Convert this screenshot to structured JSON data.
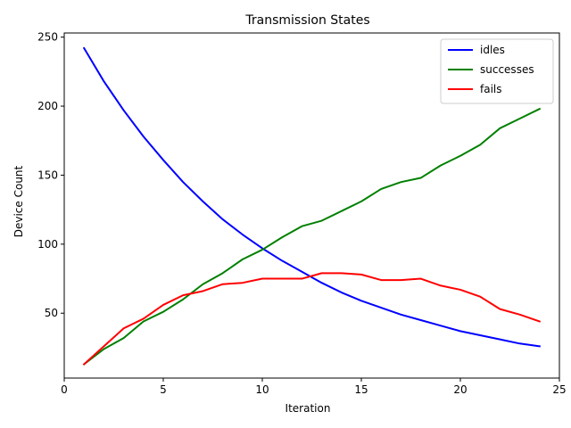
{
  "chart_data": {
    "type": "line",
    "title": "Transmission States",
    "xlabel": "Iteration",
    "ylabel": "Device Count",
    "xlim": [
      0,
      25
    ],
    "ylim": [
      3,
      253
    ],
    "x_ticks": [
      0,
      5,
      10,
      15,
      20,
      25
    ],
    "y_ticks": [
      50,
      100,
      150,
      200,
      250
    ],
    "grid": false,
    "legend_position": "top-right",
    "x": [
      1,
      2,
      3,
      4,
      5,
      6,
      7,
      8,
      9,
      10,
      11,
      12,
      13,
      14,
      15,
      16,
      17,
      18,
      19,
      20,
      21,
      22,
      23,
      24
    ],
    "series": [
      {
        "name": "idles",
        "color": "#0000ff",
        "values": [
          242,
          218,
          197,
          178,
          161,
          145,
          131,
          118,
          107,
          97,
          88,
          80,
          72,
          65,
          59,
          54,
          49,
          45,
          41,
          37,
          34,
          31,
          28,
          26
        ]
      },
      {
        "name": "successes",
        "color": "#008000",
        "values": [
          13,
          24,
          32,
          44,
          51,
          60,
          71,
          79,
          89,
          96,
          105,
          113,
          117,
          124,
          131,
          140,
          145,
          148,
          157,
          164,
          172,
          184,
          191,
          198
        ]
      },
      {
        "name": "fails",
        "color": "#ff0000",
        "values": [
          13,
          26,
          39,
          46,
          56,
          63,
          66,
          71,
          72,
          75,
          75,
          75,
          79,
          79,
          78,
          74,
          74,
          75,
          70,
          67,
          62,
          53,
          49,
          44
        ]
      }
    ]
  }
}
